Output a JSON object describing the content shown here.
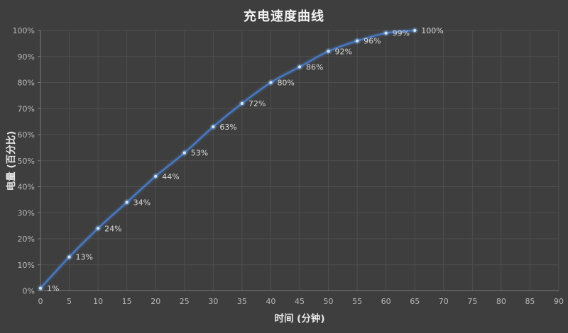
{
  "chart_data": {
    "type": "line",
    "title": "充电速度曲线",
    "xlabel": "时间 (分钟)",
    "ylabel": "电量 (百分比)",
    "x": [
      0,
      5,
      10,
      15,
      20,
      25,
      30,
      35,
      40,
      45,
      50,
      55,
      60,
      65
    ],
    "values": [
      1,
      13,
      24,
      34,
      44,
      53,
      63,
      72,
      80,
      86,
      92,
      96,
      99,
      100
    ],
    "point_labels": [
      "1%",
      "13%",
      "24%",
      "34%",
      "44%",
      "53%",
      "63%",
      "72%",
      "80%",
      "86%",
      "92%",
      "96%",
      "99%",
      "100%"
    ],
    "xlim": [
      0,
      90
    ],
    "ylim": [
      0,
      100
    ],
    "x_ticks": [
      0,
      5,
      10,
      15,
      20,
      25,
      30,
      35,
      40,
      45,
      50,
      55,
      60,
      65,
      70,
      75,
      80,
      85,
      90
    ],
    "y_ticks": [
      "0%",
      "10%",
      "20%",
      "30%",
      "40%",
      "50%",
      "60%",
      "70%",
      "80%",
      "90%",
      "100%"
    ],
    "grid": true,
    "legend": false,
    "smooth": true,
    "colors": {
      "background": "#3E3E3E",
      "gridline": "#4E4E4E",
      "axis_line": "#7A7A7A",
      "tick_label": "#B9B9B9",
      "data_label": "#D9D9D9",
      "title": "#F2F2F2",
      "axis_title": "#E8E8E8",
      "line": "#4A7CC7",
      "marker_halo": "#7FB0E8",
      "marker_core": "#CFE4F7"
    }
  }
}
